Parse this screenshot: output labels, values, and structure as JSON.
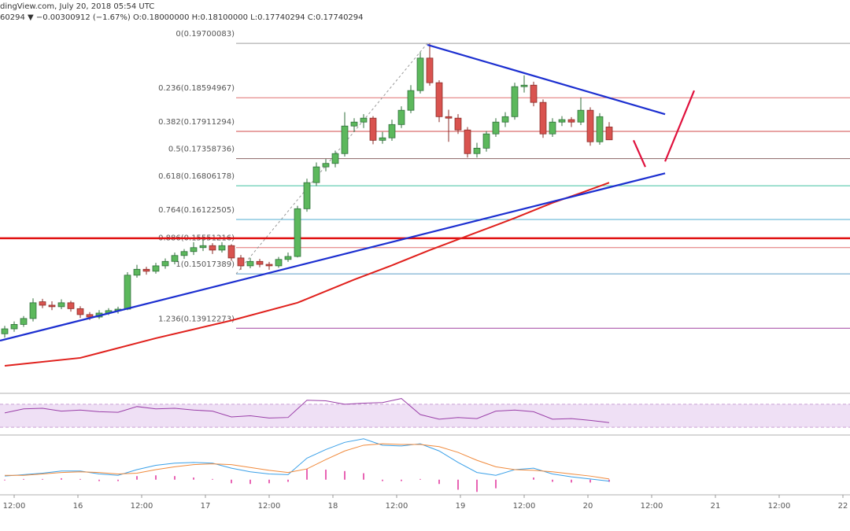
{
  "chart_data": {
    "type": "candlestick",
    "header": [
      "dingView.com, July 20, 2018 05:54 UTC",
      "60294 ▼ −0.00300912 (−1.67%) O:0.18000000 H:0.18100000 L:0.17740294 C:0.17740294"
    ],
    "xlim": [
      -0.5,
      89.5
    ],
    "xticks": [
      {
        "value": 1,
        "label": "12:00"
      },
      {
        "value": 7.75,
        "label": "16"
      },
      {
        "value": 14.5,
        "label": "12:00"
      },
      {
        "value": 21.25,
        "label": "17"
      },
      {
        "value": 28,
        "label": "12:00"
      },
      {
        "value": 34.75,
        "label": "18"
      },
      {
        "value": 41.5,
        "label": "12:00"
      },
      {
        "value": 48.25,
        "label": "19"
      },
      {
        "value": 55,
        "label": "12:00"
      },
      {
        "value": 61.75,
        "label": "20"
      },
      {
        "value": 68.5,
        "label": "12:00"
      },
      {
        "value": 75.25,
        "label": "21"
      },
      {
        "value": 82,
        "label": "12:00"
      },
      {
        "value": 88.75,
        "label": "22"
      }
    ],
    "ylim": [
      0.1259,
      0.2058
    ],
    "up_color": "#5cb85c",
    "up_edge": "#2f6f3a",
    "down_color": "#d9534f",
    "down_edge": "#8a2a26",
    "candles": [
      [
        0.138,
        0.1396,
        0.1372,
        0.139
      ],
      [
        0.139,
        0.1405,
        0.1384,
        0.1399
      ],
      [
        0.1399,
        0.1416,
        0.1394,
        0.1411
      ],
      [
        0.1411,
        0.1452,
        0.1405,
        0.1443
      ],
      [
        0.1445,
        0.1451,
        0.1432,
        0.1438
      ],
      [
        0.1438,
        0.1446,
        0.1428,
        0.1435
      ],
      [
        0.1435,
        0.145,
        0.143,
        0.1443
      ],
      [
        0.1443,
        0.1447,
        0.1425,
        0.1431
      ],
      [
        0.1431,
        0.1436,
        0.1412,
        0.1419
      ],
      [
        0.1419,
        0.1424,
        0.1408,
        0.1414
      ],
      [
        0.1414,
        0.1428,
        0.141,
        0.1422
      ],
      [
        0.1422,
        0.1432,
        0.1418,
        0.1427
      ],
      [
        0.1427,
        0.1435,
        0.1421,
        0.143
      ],
      [
        0.143,
        0.1505,
        0.1428,
        0.1499
      ],
      [
        0.1499,
        0.152,
        0.1494,
        0.1511
      ],
      [
        0.1511,
        0.1516,
        0.15,
        0.1507
      ],
      [
        0.1507,
        0.1524,
        0.1502,
        0.1518
      ],
      [
        0.1518,
        0.1533,
        0.1512,
        0.1527
      ],
      [
        0.1527,
        0.1545,
        0.1521,
        0.1539
      ],
      [
        0.1539,
        0.1552,
        0.1532,
        0.1547
      ],
      [
        0.1547,
        0.1566,
        0.154,
        0.1555
      ],
      [
        0.1555,
        0.1572,
        0.1548,
        0.1559
      ],
      [
        0.1559,
        0.1564,
        0.1542,
        0.155
      ],
      [
        0.155,
        0.1566,
        0.1545,
        0.1559
      ],
      [
        0.1559,
        0.1562,
        0.1528,
        0.1534
      ],
      [
        0.1534,
        0.154,
        0.151,
        0.1518
      ],
      [
        0.1518,
        0.1534,
        0.1513,
        0.1527
      ],
      [
        0.1527,
        0.1532,
        0.1515,
        0.1521
      ],
      [
        0.1521,
        0.1526,
        0.151,
        0.1518
      ],
      [
        0.1518,
        0.1536,
        0.1514,
        0.1531
      ],
      [
        0.1531,
        0.1545,
        0.1526,
        0.1537
      ],
      [
        0.1537,
        0.164,
        0.1535,
        0.1634
      ],
      [
        0.1634,
        0.1695,
        0.1628,
        0.1687
      ],
      [
        0.1687,
        0.1728,
        0.168,
        0.1719
      ],
      [
        0.1719,
        0.1735,
        0.171,
        0.1726
      ],
      [
        0.1726,
        0.1752,
        0.1718,
        0.1746
      ],
      [
        0.1746,
        0.183,
        0.174,
        0.1802
      ],
      [
        0.1802,
        0.1818,
        0.179,
        0.181
      ],
      [
        0.181,
        0.1826,
        0.1798,
        0.1818
      ],
      [
        0.1818,
        0.1822,
        0.1765,
        0.1773
      ],
      [
        0.1773,
        0.179,
        0.1766,
        0.1778
      ],
      [
        0.1778,
        0.1815,
        0.1772,
        0.1805
      ],
      [
        0.1805,
        0.1842,
        0.1798,
        0.1834
      ],
      [
        0.1834,
        0.1885,
        0.1828,
        0.1874
      ],
      [
        0.1874,
        0.1952,
        0.1868,
        0.194
      ],
      [
        0.194,
        0.197,
        0.1884,
        0.189
      ],
      [
        0.189,
        0.1895,
        0.181,
        0.1821
      ],
      [
        0.1821,
        0.1835,
        0.177,
        0.1818
      ],
      [
        0.1818,
        0.1826,
        0.1786,
        0.1794
      ],
      [
        0.1794,
        0.18,
        0.1738,
        0.1746
      ],
      [
        0.1746,
        0.1768,
        0.1738,
        0.1757
      ],
      [
        0.1757,
        0.1792,
        0.175,
        0.1786
      ],
      [
        0.1786,
        0.1818,
        0.178,
        0.181
      ],
      [
        0.181,
        0.183,
        0.18,
        0.1821
      ],
      [
        0.1821,
        0.189,
        0.1815,
        0.1882
      ],
      [
        0.1882,
        0.1905,
        0.187,
        0.1885
      ],
      [
        0.1885,
        0.1892,
        0.1842,
        0.185
      ],
      [
        0.185,
        0.1856,
        0.1778,
        0.1786
      ],
      [
        0.1786,
        0.1818,
        0.178,
        0.181
      ],
      [
        0.181,
        0.1822,
        0.1802,
        0.1815
      ],
      [
        0.1815,
        0.182,
        0.18,
        0.181
      ],
      [
        0.181,
        0.186,
        0.1804,
        0.1834
      ],
      [
        0.1834,
        0.184,
        0.1762,
        0.177
      ],
      [
        0.177,
        0.1828,
        0.1764,
        0.1821
      ],
      [
        0.18,
        0.181,
        0.1774,
        0.1774
      ]
    ],
    "moving_average": {
      "color": "#e0201c",
      "x": [
        0,
        8,
        16,
        24,
        31,
        37,
        41,
        45,
        50,
        54,
        58,
        61,
        64
      ],
      "values": [
        0.1315,
        0.1331,
        0.1371,
        0.1407,
        0.1443,
        0.149,
        0.1519,
        0.155,
        0.1586,
        0.1615,
        0.1646,
        0.1666,
        0.1687
      ]
    },
    "fib_levels": [
      {
        "value": 0.19700083,
        "label": "0(0.19700083)",
        "color": "#9e9e9e"
      },
      {
        "value": 0.18594967,
        "label": "0.236(0.18594967)",
        "color": "#e07070"
      },
      {
        "value": 0.17911294,
        "label": "0.382(0.17911294)",
        "color": "#d04848"
      },
      {
        "value": 0.17358736,
        "label": "0.5(0.17358736)",
        "color": "#8c6464"
      },
      {
        "value": 0.16806178,
        "label": "0.618(0.16806178)",
        "color": "#40c0a0"
      },
      {
        "value": 0.16122505,
        "label": "0.764(0.16122505)",
        "color": "#50acd0"
      },
      {
        "value": 0.15551216,
        "label": "0.886(0.15551216)",
        "color": "#e07070"
      },
      {
        "value": 0.15017389,
        "label": "1(0.15017389)",
        "color": "#5a9cc8"
      },
      {
        "value": 0.13912273,
        "label": "1.236(0.13912273)",
        "color": "#a040a0"
      }
    ],
    "horizontal_line": {
      "value": 0.1574,
      "color": "#e01010"
    },
    "trendlines": [
      {
        "color": "#1c2fd0",
        "x": [
          -0.5,
          69.92
        ],
        "values": [
          0.1366,
          0.1706
        ]
      },
      {
        "color": "#1c2fd0",
        "x": [
          44.75,
          69.92
        ],
        "values": [
          0.1967,
          0.1826
        ]
      },
      {
        "color": "#e0103c",
        "x": [
          66.58,
          67.83
        ],
        "values": [
          0.1773,
          0.1719
        ]
      },
      {
        "color": "#e0103c",
        "x": [
          69.92,
          73
        ],
        "values": [
          0.173,
          0.1874
        ]
      }
    ],
    "rsi": {
      "color": "#9a3fa8",
      "band": [
        30,
        70
      ],
      "ylim": [
        0,
        100
      ],
      "x": [
        0,
        2,
        4,
        6,
        8,
        10,
        12,
        14,
        16,
        18,
        20,
        22,
        24,
        26,
        28,
        30,
        32,
        34,
        36,
        38,
        40,
        42,
        44,
        46,
        48,
        50,
        52,
        54,
        56,
        58,
        60,
        62,
        64
      ],
      "values": [
        55,
        62,
        63,
        58,
        60,
        57,
        56,
        66,
        62,
        63,
        60,
        58,
        48,
        50,
        46,
        47,
        77,
        76,
        70,
        72,
        73,
        80,
        52,
        44,
        47,
        45,
        58,
        60,
        57,
        44,
        45,
        42,
        38
      ]
    },
    "macd": {
      "ylim": [
        -20,
        60
      ],
      "x": [
        0,
        2,
        4,
        6,
        8,
        10,
        12,
        14,
        16,
        18,
        20,
        22,
        24,
        26,
        28,
        30,
        32,
        34,
        36,
        38,
        40,
        42,
        44,
        46,
        48,
        50,
        52,
        54,
        56,
        58,
        60,
        62,
        64
      ],
      "series": [
        {
          "color": "#3aa0e8",
          "values": [
            5,
            7,
            9,
            12,
            12,
            8,
            6,
            14,
            20,
            23,
            24,
            23,
            16,
            11,
            8,
            7,
            30,
            42,
            52,
            57,
            48,
            47,
            50,
            40,
            24,
            10,
            6,
            14,
            16,
            8,
            4,
            1,
            -2
          ]
        },
        {
          "color": "#f08a3c",
          "values": [
            6,
            6,
            8,
            10,
            11,
            10,
            8,
            9,
            14,
            18,
            21,
            22,
            21,
            17,
            13,
            10,
            15,
            28,
            40,
            48,
            50,
            49,
            49,
            46,
            38,
            27,
            18,
            14,
            13,
            11,
            8,
            5,
            1
          ]
        }
      ],
      "histogram": {
        "color": "#e0309a",
        "values": [
          -1,
          1,
          1,
          2,
          1,
          -2,
          -2,
          5,
          6,
          5,
          3,
          1,
          -5,
          -6,
          -5,
          -3,
          15,
          14,
          12,
          9,
          -2,
          -2,
          1,
          -6,
          -14,
          -17,
          -12,
          0,
          3,
          -3,
          -4,
          -4,
          -3
        ]
      }
    }
  }
}
